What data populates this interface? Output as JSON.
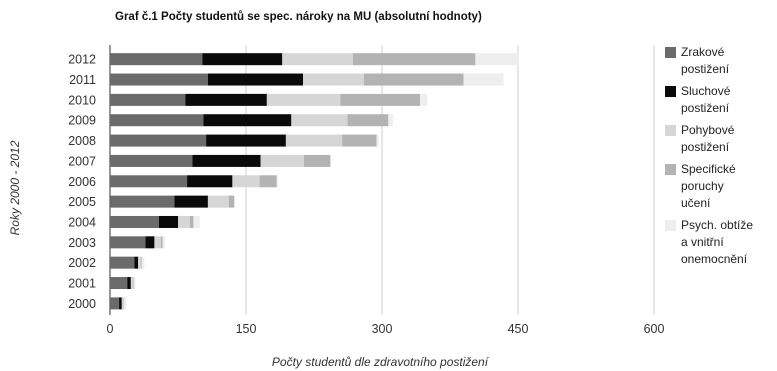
{
  "title": "Graf č.1 Počty studentů se spec. nároky na MU (absolutní hodnoty)",
  "chart_data": {
    "type": "bar",
    "orientation": "horizontal",
    "stacked": true,
    "title": "Graf č.1 Počty studentů se spec. nároky na MU (absolutní hodnoty)",
    "xlabel": "Počty studentů dle zdravotního postižení",
    "ylabel": "Roky 2000 - 2012",
    "xlim": [
      0,
      600
    ],
    "xticks": [
      "0",
      "150",
      "300",
      "450",
      "600"
    ],
    "categories": [
      "2012",
      "2011",
      "2010",
      "2009",
      "2008",
      "2007",
      "2006",
      "2005",
      "2004",
      "2003",
      "2002",
      "2001",
      "2000"
    ],
    "series": [
      {
        "name": "Zrakové postižení",
        "color": "#6b6b6b",
        "values": [
          102,
          108,
          83,
          103,
          106,
          91,
          85,
          71,
          54,
          39,
          27,
          19,
          10
        ]
      },
      {
        "name": "Sluchové postižení",
        "color": "#0a0a0a",
        "values": [
          88,
          105,
          90,
          97,
          88,
          75,
          50,
          37,
          21,
          10,
          4,
          4,
          3
        ]
      },
      {
        "name": "Pohybové postižení",
        "color": "#d6d6d6",
        "values": [
          78,
          67,
          81,
          62,
          62,
          48,
          30,
          23,
          13,
          7,
          3,
          2,
          1
        ]
      },
      {
        "name": "Specifické poruchy učení",
        "color": "#b3b3b3",
        "values": [
          135,
          110,
          88,
          45,
          38,
          29,
          19,
          6,
          4,
          2,
          1,
          1,
          1
        ]
      },
      {
        "name": "Psych. obtíže a vnitřní onemocnění",
        "color": "#eeeeee",
        "values": [
          48,
          44,
          8,
          5,
          2,
          1,
          1,
          1,
          7,
          3,
          3,
          2,
          3
        ]
      }
    ],
    "grid": true,
    "legend_position": "right"
  }
}
